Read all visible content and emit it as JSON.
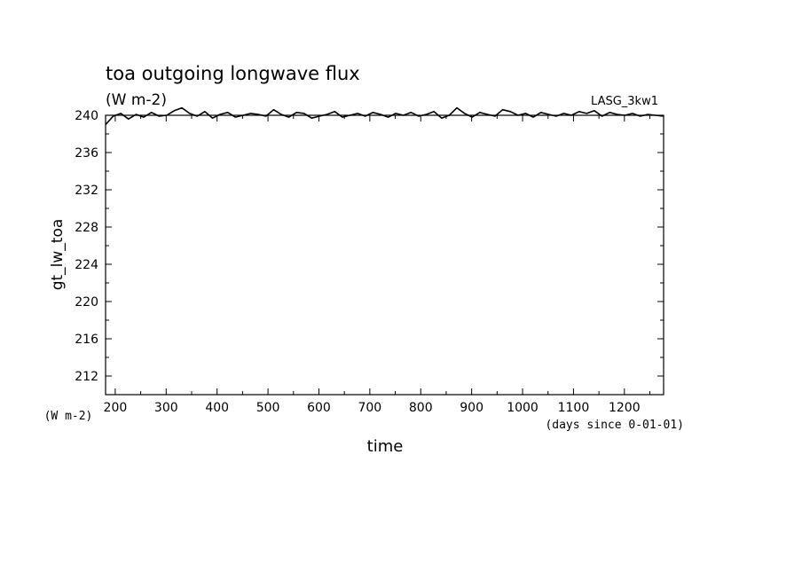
{
  "chart_data": {
    "type": "line",
    "title": "toa outgoing longwave flux",
    "subtitle": "(W m-2)",
    "run_label": "LASG_3kw1",
    "ylabel": "gt_lw_toa",
    "yunit": "(W m-2)",
    "xlabel": "time",
    "xunit": "(days since 0-01-01)",
    "xlim": [
      181,
      1277
    ],
    "ylim": [
      210,
      240
    ],
    "xticks": [
      200,
      300,
      400,
      500,
      600,
      700,
      800,
      900,
      1000,
      1100,
      1200
    ],
    "yticks": [
      212,
      216,
      220,
      224,
      228,
      232,
      236,
      240
    ],
    "grid": false,
    "series": [
      {
        "color": "#000000",
        "x": [
          181,
          196,
          211,
          226,
          241,
          256,
          271,
          286,
          301,
          316,
          331,
          346,
          361,
          376,
          391,
          406,
          421,
          436,
          451,
          466,
          481,
          496,
          511,
          526,
          541,
          556,
          571,
          586,
          601,
          616,
          631,
          646,
          661,
          676,
          691,
          706,
          721,
          736,
          751,
          766,
          781,
          796,
          811,
          826,
          841,
          856,
          871,
          886,
          901,
          916,
          931,
          946,
          961,
          976,
          991,
          1006,
          1021,
          1036,
          1051,
          1066,
          1081,
          1096,
          1111,
          1126,
          1141,
          1156,
          1171,
          1186,
          1201,
          1216,
          1231,
          1246,
          1261,
          1276
        ],
        "values": [
          239.0,
          239.9,
          240.2,
          239.6,
          240.1,
          239.8,
          240.3,
          239.9,
          240.0,
          240.5,
          240.8,
          240.2,
          239.9,
          240.4,
          239.7,
          240.1,
          240.3,
          239.8,
          240.0,
          240.2,
          240.1,
          239.9,
          240.6,
          240.1,
          239.8,
          240.3,
          240.2,
          239.7,
          239.9,
          240.1,
          240.4,
          239.8,
          240.0,
          240.2,
          239.9,
          240.3,
          240.1,
          239.8,
          240.2,
          240.0,
          240.3,
          239.9,
          240.1,
          240.4,
          239.7,
          240.0,
          240.8,
          240.2,
          239.8,
          240.3,
          240.1,
          239.9,
          240.6,
          240.4,
          240.0,
          240.2,
          239.8,
          240.3,
          240.1,
          239.9,
          240.2,
          240.0,
          240.4,
          240.2,
          240.5,
          239.9,
          240.3,
          240.1,
          240.0,
          240.2,
          239.9,
          240.1,
          240.0,
          239.9
        ]
      }
    ]
  }
}
